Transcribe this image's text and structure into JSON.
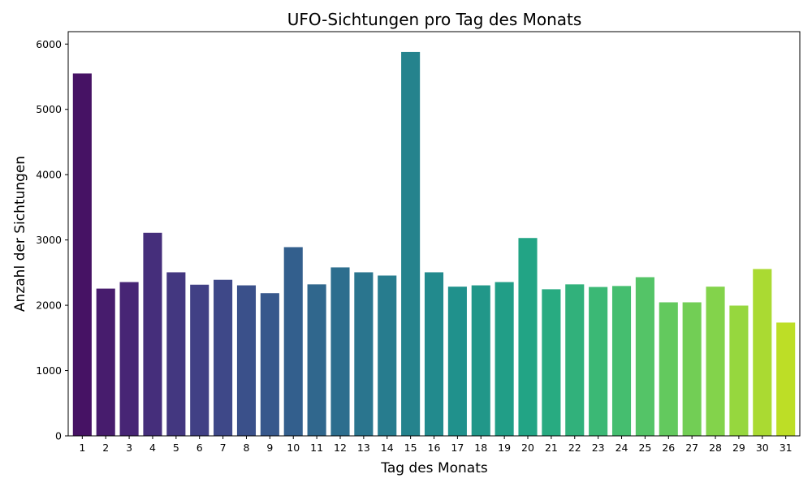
{
  "chart_data": {
    "type": "bar",
    "title": "UFO-Sichtungen pro Tag des Monats",
    "xlabel": "Tag des Monats",
    "ylabel": "Anzahl der Sichtungen",
    "categories": [
      "1",
      "2",
      "3",
      "4",
      "5",
      "6",
      "7",
      "8",
      "9",
      "10",
      "11",
      "12",
      "13",
      "14",
      "15",
      "16",
      "17",
      "18",
      "19",
      "20",
      "21",
      "22",
      "23",
      "24",
      "25",
      "26",
      "27",
      "28",
      "29",
      "30",
      "31"
    ],
    "values": [
      5550,
      2255,
      2355,
      3110,
      2505,
      2315,
      2390,
      2305,
      2185,
      2890,
      2320,
      2580,
      2505,
      2455,
      5880,
      2505,
      2285,
      2305,
      2355,
      3030,
      2245,
      2320,
      2280,
      2295,
      2430,
      2045,
      2045,
      2285,
      1995,
      2555,
      1735
    ],
    "ylim": [
      0,
      6190
    ],
    "yticks": [
      0,
      1000,
      2000,
      3000,
      4000,
      5000,
      6000
    ],
    "colormap": "viridis",
    "grid": false
  }
}
